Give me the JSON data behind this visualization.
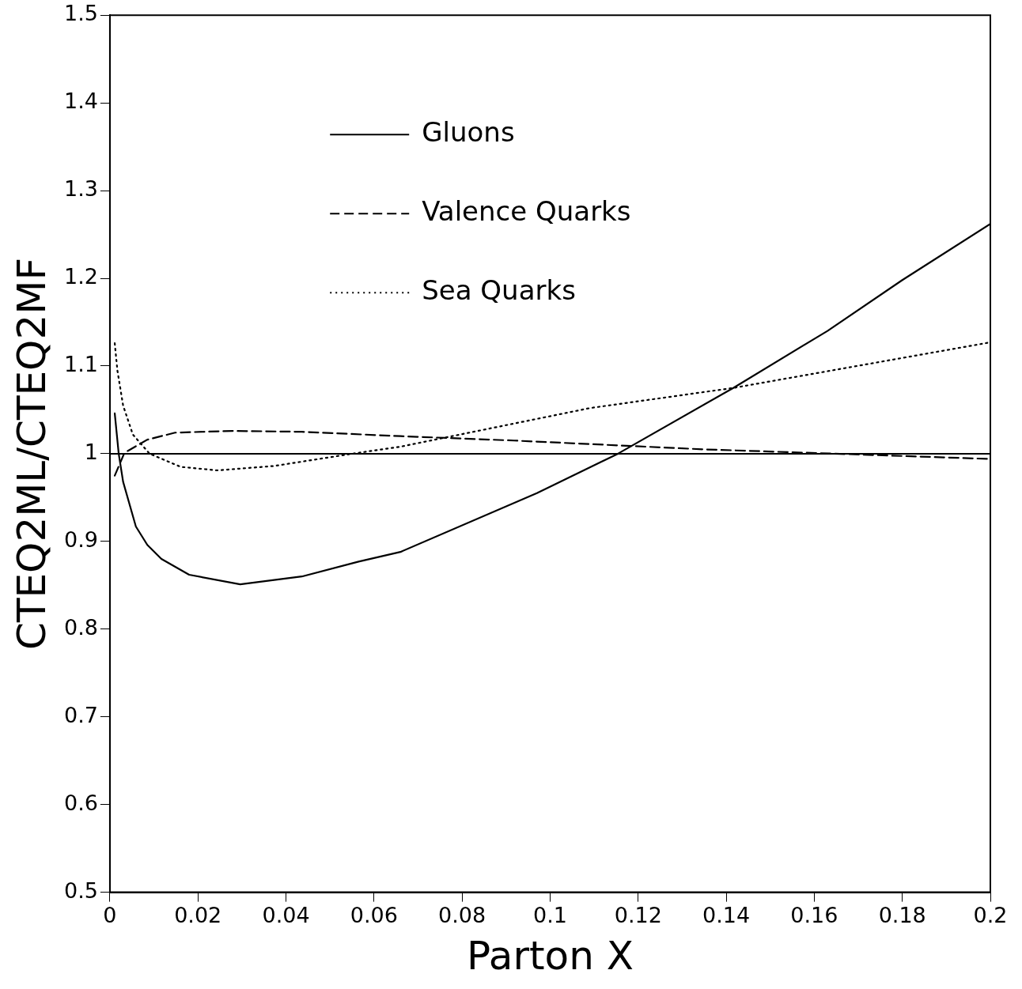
{
  "chart_data": {
    "type": "line",
    "xlabel": "Parton X",
    "ylabel": "CTEQ2ML/CTEQ2MF",
    "xlim": [
      0,
      0.2
    ],
    "ylim": [
      0.5,
      1.5
    ],
    "xticks": [
      0,
      0.02,
      0.04,
      0.06,
      0.08,
      0.1,
      0.12,
      0.14,
      0.16,
      0.18,
      0.2
    ],
    "yticks": [
      0.5,
      0.6,
      0.7,
      0.8,
      0.9,
      1,
      1.1,
      1.2,
      1.3,
      1.4,
      1.5
    ],
    "grid": false,
    "legend": "top left",
    "marker": "none",
    "ref_lines": [
      {
        "axis": "y",
        "value": 1,
        "color": "#000000",
        "line_style": "solid"
      }
    ],
    "series": [
      {
        "name": "Gluons",
        "color": "#000000",
        "line_style": "solid",
        "x": [
          0.0011,
          0.002,
          0.003,
          0.0059,
          0.0085,
          0.0117,
          0.018,
          0.0296,
          0.0436,
          0.0565,
          0.066,
          0.097,
          0.1154,
          0.1416,
          0.163,
          0.18,
          0.2
        ],
        "values": [
          1.046,
          1.0,
          0.968,
          0.917,
          0.896,
          0.88,
          0.862,
          0.851,
          0.86,
          0.877,
          0.888,
          0.955,
          1.0,
          1.075,
          1.14,
          1.198,
          1.262
        ]
      },
      {
        "name": "Valence Quarks",
        "color": "#000000",
        "line_style": "dashed",
        "x": [
          0.0011,
          0.0033,
          0.0085,
          0.0148,
          0.0277,
          0.0436,
          0.066,
          0.0918,
          0.1347,
          0.1647,
          0.2
        ],
        "values": [
          0.975,
          1.001,
          1.016,
          1.024,
          1.026,
          1.025,
          1.02,
          1.015,
          1.005,
          1.0,
          0.994
        ]
      },
      {
        "name": "Sea Quarks",
        "color": "#000000",
        "line_style": "dotted",
        "x": [
          0.0011,
          0.0017,
          0.003,
          0.0052,
          0.009,
          0.0161,
          0.0244,
          0.0373,
          0.0551,
          0.066,
          0.109,
          0.1416,
          0.2
        ],
        "values": [
          1.126,
          1.095,
          1.055,
          1.022,
          1.0,
          0.985,
          0.981,
          0.986,
          1.0,
          1.008,
          1.052,
          1.075,
          1.127
        ]
      }
    ]
  }
}
